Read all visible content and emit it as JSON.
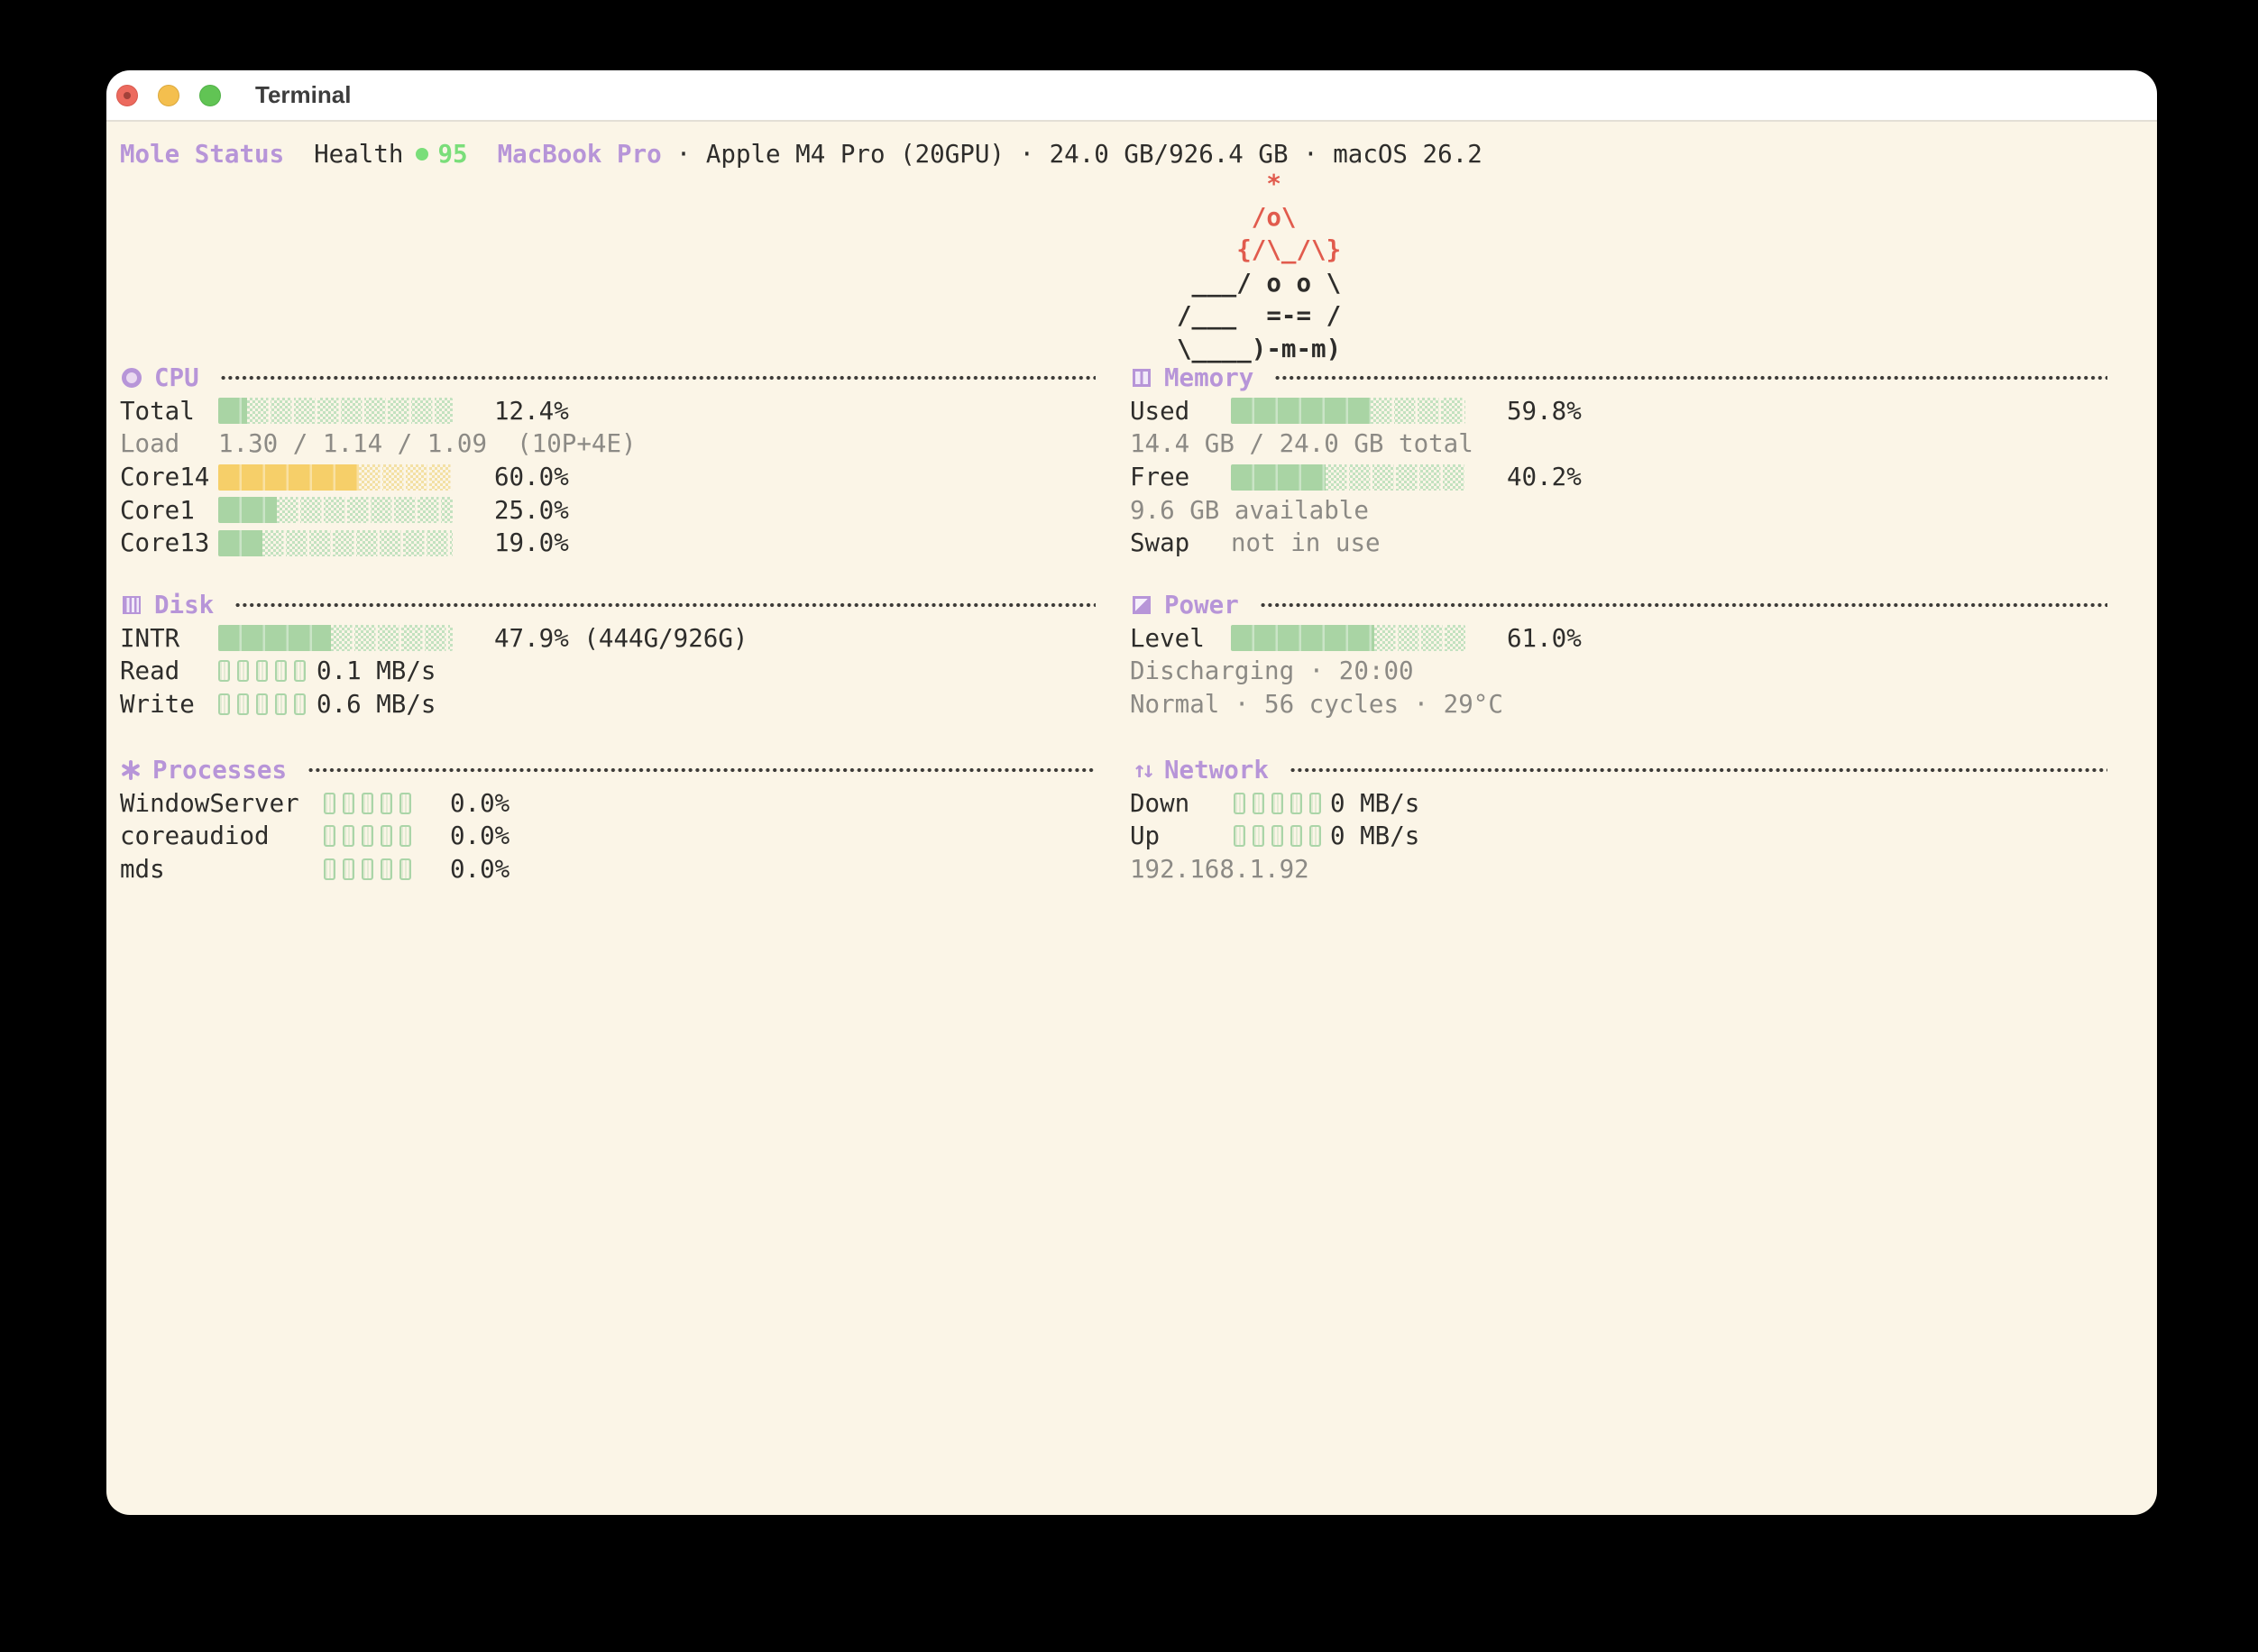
{
  "window": {
    "title": "Terminal"
  },
  "statusline": {
    "app": "Mole Status",
    "health_label": "Health",
    "health_score": "95",
    "host": "MacBook Pro",
    "system_info": "· Apple M4 Pro (20GPU) · 24.0 GB/926.4 GB · macOS 26.2"
  },
  "mascot": {
    "red_lines": "      *\n     /o\\\n    {/\\_/\\}",
    "dark_lines": " ___/ o o \\\n/___  =-= /\n\\____)-m-m)"
  },
  "sections": {
    "cpu": {
      "icon": "cpu-ring-icon",
      "title": "CPU",
      "rows": [
        {
          "label": "Total",
          "pct": 12.4,
          "color": "green",
          "value": "12.4%"
        },
        {
          "label": "Load",
          "text": "1.30 / 1.14 / 1.09  (10P+4E)"
        },
        {
          "label": "Core14",
          "pct": 60.0,
          "color": "yellow",
          "value": "60.0%"
        },
        {
          "label": "Core1",
          "pct": 25.0,
          "color": "green",
          "value": "25.0%"
        },
        {
          "label": "Core13",
          "pct": 19.0,
          "color": "green",
          "value": "19.0%"
        }
      ]
    },
    "memory": {
      "icon": "memory-square-icon",
      "title": "Memory",
      "rows": [
        {
          "label": "Used",
          "pct": 59.8,
          "color": "green",
          "value": "59.8%"
        },
        {
          "text": "14.4 GB / 24.0 GB total"
        },
        {
          "label": "Free",
          "pct": 40.2,
          "color": "green",
          "value": "40.2%"
        },
        {
          "text": "9.6 GB available"
        },
        {
          "label": "Swap",
          "text": "not in use"
        }
      ]
    },
    "disk": {
      "icon": "disk-stripes-icon",
      "title": "Disk",
      "rows": [
        {
          "label": "INTR",
          "pct": 47.9,
          "color": "green",
          "value": "47.9% (444G/926G)"
        },
        {
          "label": "Read",
          "value": "0.1 MB/s"
        },
        {
          "label": "Write",
          "value": "0.6 MB/s"
        }
      ]
    },
    "power": {
      "icon": "power-halfsquare-icon",
      "title": "Power",
      "rows": [
        {
          "label": "Level",
          "pct": 61.0,
          "color": "green",
          "value": "61.0%"
        },
        {
          "text": "Discharging · 20:00"
        },
        {
          "text": "Normal · 56 cycles · 29°C"
        }
      ]
    },
    "processes": {
      "icon": "asterisk-icon",
      "title": "Processes",
      "rows": [
        {
          "label": "WindowServer",
          "value": "0.0%"
        },
        {
          "label": "coreaudiod",
          "value": "0.0%"
        },
        {
          "label": "mds",
          "value": "0.0%"
        }
      ]
    },
    "network": {
      "icon": "up-down-arrows-icon",
      "title": "Network",
      "rows": [
        {
          "label": "Down",
          "value": "0 MB/s"
        },
        {
          "label": "Up",
          "value": "0 MB/s"
        },
        {
          "text": "192.168.1.92"
        }
      ]
    }
  },
  "colors": {
    "accent_purple": "#b795d8",
    "bar_green": "#a9d4a4",
    "bar_green_hatch": "#c3e2c0",
    "bar_yellow": "#f6cf69",
    "bar_yellow_hatch": "#f3e0a4",
    "health_green": "#7ade7a",
    "mascot_red": "#e15b4d",
    "text_dark": "#2e2d2b",
    "text_gray": "#8c8a85",
    "terminal_bg": "#fbf5e7",
    "titlebar_bg": "#ffffff",
    "traffic_red": "#ec6a5e",
    "traffic_yellow": "#f4bf4e",
    "traffic_green": "#61c454",
    "leader_dot": "#3d3b38",
    "mini_green": "#abd5a8"
  }
}
